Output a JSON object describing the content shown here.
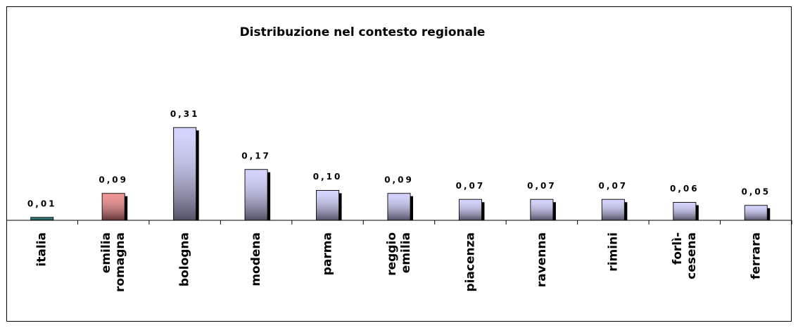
{
  "chart_data": {
    "type": "bar",
    "title": "Distribuzione nel contesto regionale",
    "categories": [
      "italia",
      "emilia romagna",
      "bologna",
      "modena",
      "parma",
      "reggio emilia",
      "piacenza",
      "ravenna",
      "rimini",
      "forlì-cesena",
      "ferrara"
    ],
    "values": [
      0.01,
      0.09,
      0.31,
      0.17,
      0.1,
      0.09,
      0.07,
      0.07,
      0.07,
      0.06,
      0.05
    ],
    "value_labels": [
      "0,01",
      "0,09",
      "0,31",
      "0,17",
      "0,10",
      "0,09",
      "0,07",
      "0,07",
      "0,07",
      "0,06",
      "0,05"
    ],
    "colors": [
      "#006666",
      "#f08080",
      "#ccccff",
      "#ccccff",
      "#ccccff",
      "#ccccff",
      "#ccccff",
      "#ccccff",
      "#ccccff",
      "#ccccff",
      "#ccccff"
    ],
    "ylim": [
      0,
      0.4
    ]
  }
}
